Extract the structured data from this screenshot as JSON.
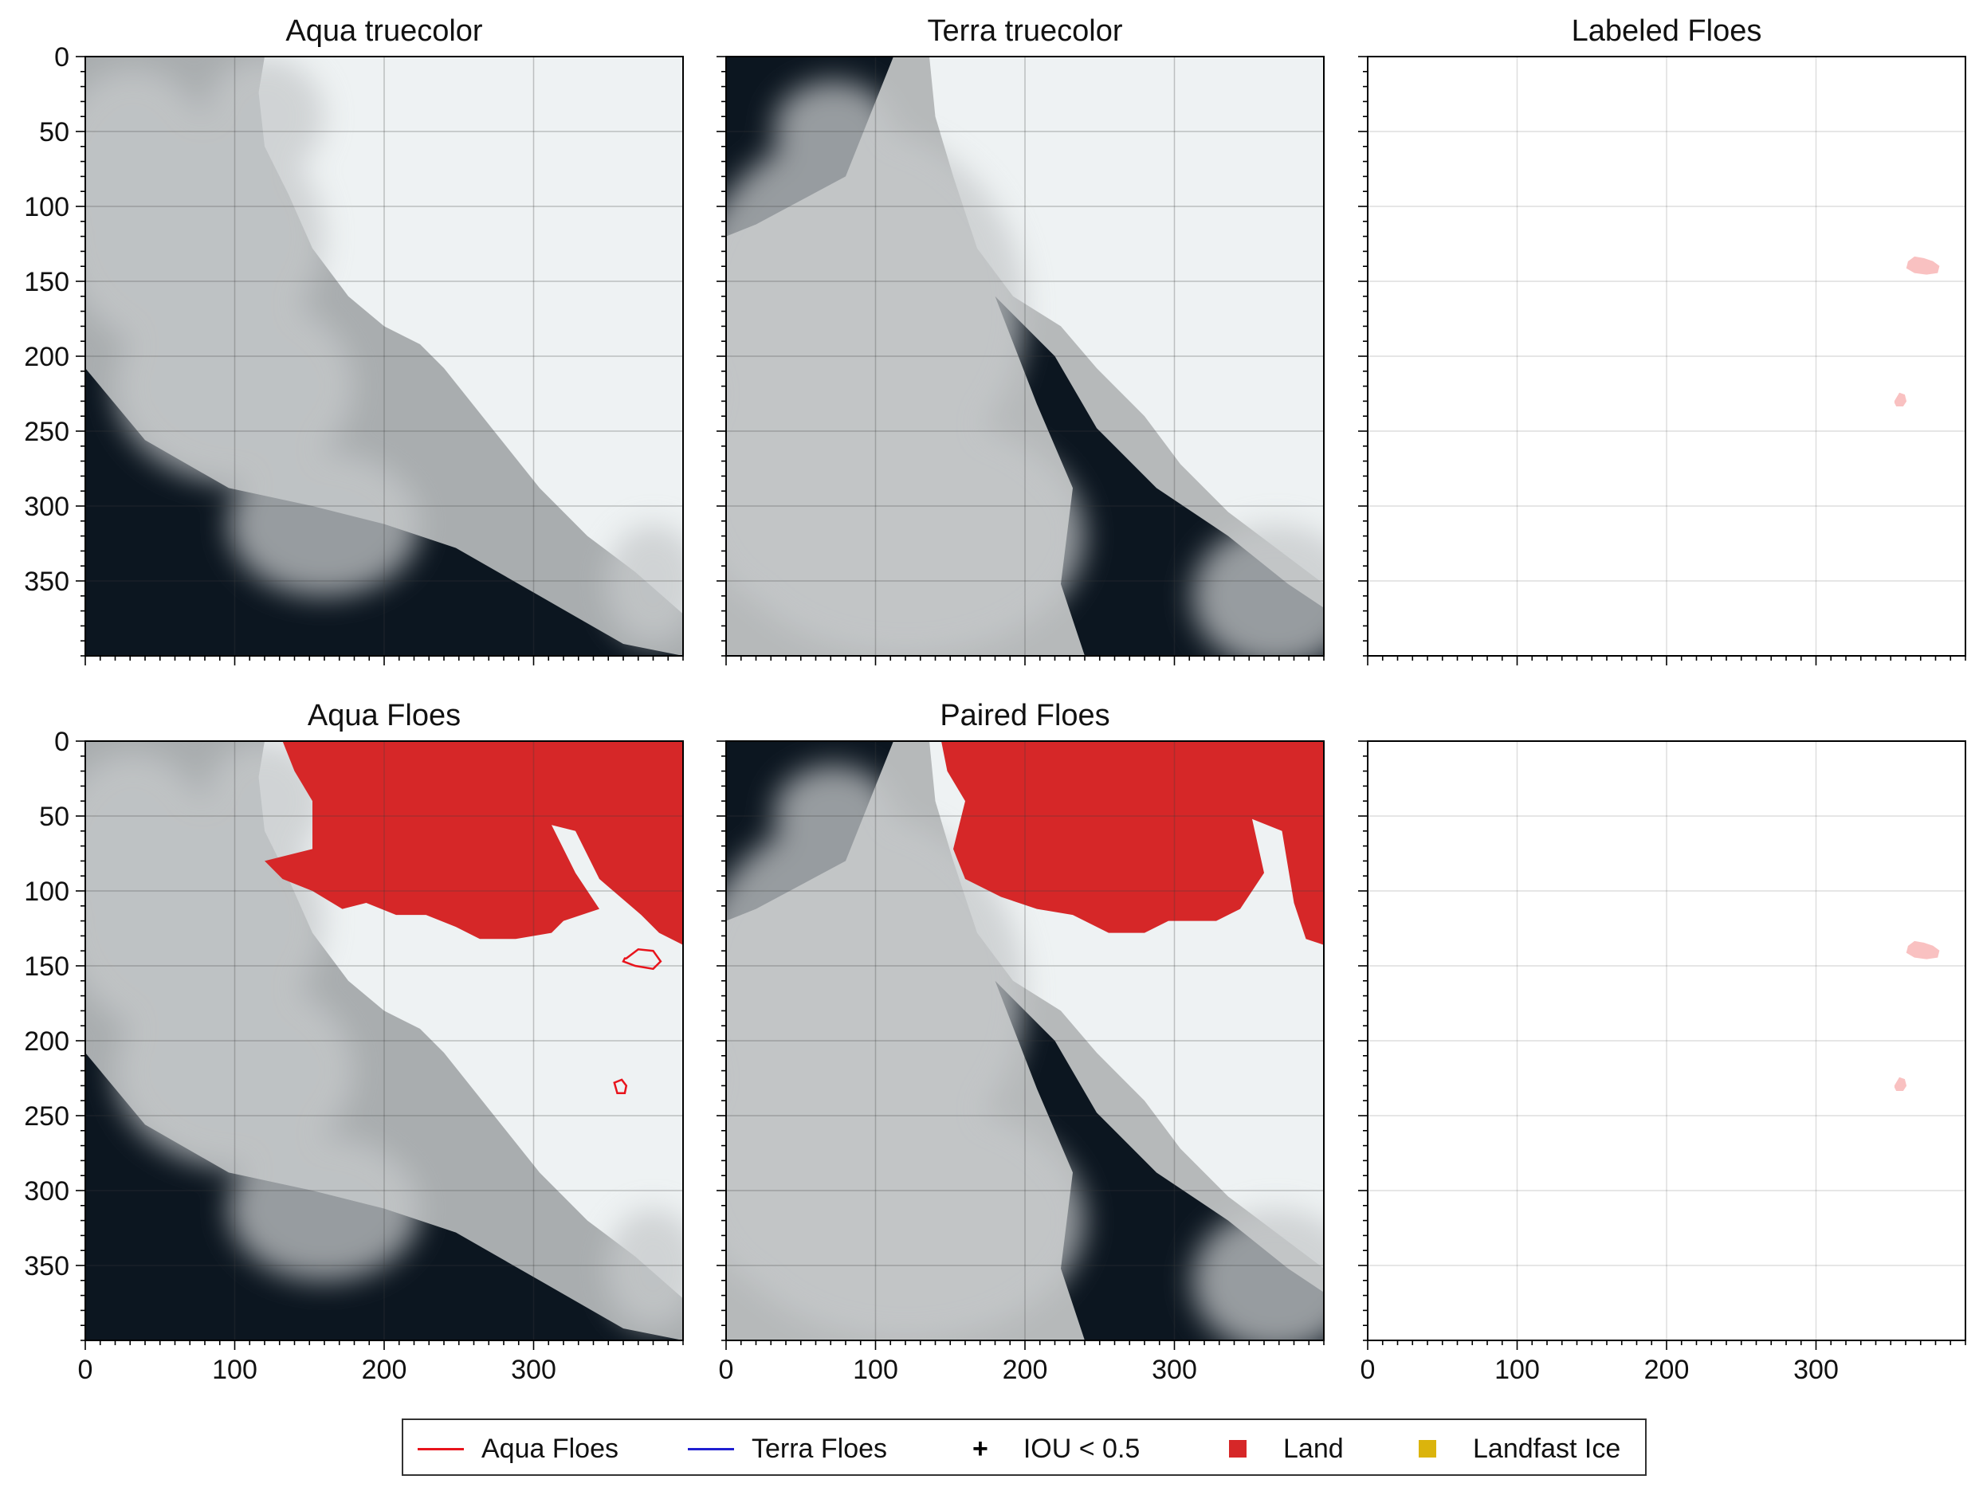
{
  "colors": {
    "land": "#d62728",
    "landfast_ice": "#dbb40c",
    "aqua_floes": "#e8141c",
    "terra_floes": "#1f1fd1",
    "labeled_floe": "#f9c1c1",
    "water": "#0c1620",
    "ice": "#eef2f3",
    "cloud": "#c6c9cb"
  },
  "chart_data": [
    {
      "type": "heatmap",
      "panel": "aqua_truecolor",
      "title": "Aqua truecolor",
      "xlim": [
        0,
        400
      ],
      "ylim": [
        400,
        0
      ],
      "xticks": [
        0,
        100,
        200,
        300
      ],
      "yticks": [
        0,
        50,
        100,
        150,
        200,
        250,
        300,
        350
      ],
      "show_xticklabels": false,
      "show_yticklabels": true,
      "grid": true,
      "mask": "none",
      "floe_outlines": []
    },
    {
      "type": "heatmap",
      "panel": "terra_truecolor",
      "title": "Terra truecolor",
      "xlim": [
        0,
        400
      ],
      "ylim": [
        400,
        0
      ],
      "xticks": [
        0,
        100,
        200,
        300
      ],
      "yticks": [
        0,
        50,
        100,
        150,
        200,
        250,
        300,
        350
      ],
      "show_xticklabels": false,
      "show_yticklabels": false,
      "grid": true,
      "mask": "none",
      "floe_outlines": []
    },
    {
      "type": "scatter",
      "panel": "labeled_floes",
      "title": "Labeled Floes",
      "xlim": [
        0,
        400
      ],
      "ylim": [
        400,
        0
      ],
      "xticks": [
        0,
        100,
        200,
        300
      ],
      "yticks": [
        0,
        50,
        100,
        150,
        200,
        250,
        300,
        350
      ],
      "show_xticklabels": false,
      "show_yticklabels": false,
      "grid": true,
      "floes": [
        {
          "x": [
            362,
            366,
            372,
            378,
            382,
            381,
            374,
            366,
            361
          ],
          "y": [
            137,
            134,
            135,
            137,
            140,
            144,
            145,
            144,
            141
          ]
        },
        {
          "x": [
            353,
            356,
            359,
            360,
            358,
            354,
            353
          ],
          "y": [
            230,
            225,
            226,
            230,
            233,
            233,
            231
          ]
        }
      ]
    },
    {
      "type": "heatmap",
      "panel": "aqua_floes",
      "title": "Aqua Floes",
      "xlim": [
        0,
        400
      ],
      "ylim": [
        400,
        0
      ],
      "xticks": [
        0,
        100,
        200,
        300
      ],
      "yticks": [
        0,
        50,
        100,
        150,
        200,
        250,
        300,
        350
      ],
      "show_xticklabels": true,
      "show_yticklabels": true,
      "grid": true,
      "mask": "land",
      "floe_outlines": [
        {
          "x": [
            362,
            370,
            380,
            385,
            380,
            368,
            360,
            361
          ],
          "y": [
            145,
            139,
            140,
            147,
            152,
            150,
            147,
            145
          ]
        },
        {
          "x": [
            354,
            359,
            362,
            361,
            356,
            354
          ],
          "y": [
            228,
            226,
            230,
            235,
            235,
            228
          ]
        }
      ]
    },
    {
      "type": "heatmap",
      "panel": "paired_floes",
      "title": "Paired Floes",
      "xlim": [
        0,
        400
      ],
      "ylim": [
        400,
        0
      ],
      "xticks": [
        0,
        100,
        200,
        300
      ],
      "yticks": [
        0,
        50,
        100,
        150,
        200,
        250,
        300,
        350
      ],
      "show_xticklabels": true,
      "show_yticklabels": false,
      "grid": true,
      "mask": "land",
      "floe_outlines": []
    },
    {
      "type": "scatter",
      "panel": "paired_labels",
      "title": "",
      "xlim": [
        0,
        400
      ],
      "ylim": [
        400,
        0
      ],
      "xticks": [
        0,
        100,
        200,
        300
      ],
      "yticks": [
        0,
        50,
        100,
        150,
        200,
        250,
        300,
        350
      ],
      "show_xticklabels": true,
      "show_yticklabels": false,
      "grid": true,
      "floes": [
        {
          "x": [
            362,
            366,
            372,
            378,
            382,
            381,
            374,
            366,
            361
          ],
          "y": [
            137,
            134,
            135,
            137,
            140,
            144,
            145,
            144,
            141
          ]
        },
        {
          "x": [
            353,
            356,
            359,
            360,
            358,
            354,
            353
          ],
          "y": [
            230,
            225,
            226,
            230,
            233,
            233,
            231
          ]
        }
      ]
    }
  ],
  "legend": {
    "items": [
      {
        "label": "Aqua Floes",
        "kind": "line",
        "color": "#e8141c"
      },
      {
        "label": "Terra Floes",
        "kind": "line",
        "color": "#1f1fd1"
      },
      {
        "label": "IOU < 0.5",
        "kind": "marker",
        "symbol": "+"
      },
      {
        "label": "Land",
        "kind": "square",
        "color": "#d62728"
      },
      {
        "label": "Landfast Ice",
        "kind": "square",
        "color": "#dbb40c"
      }
    ]
  }
}
